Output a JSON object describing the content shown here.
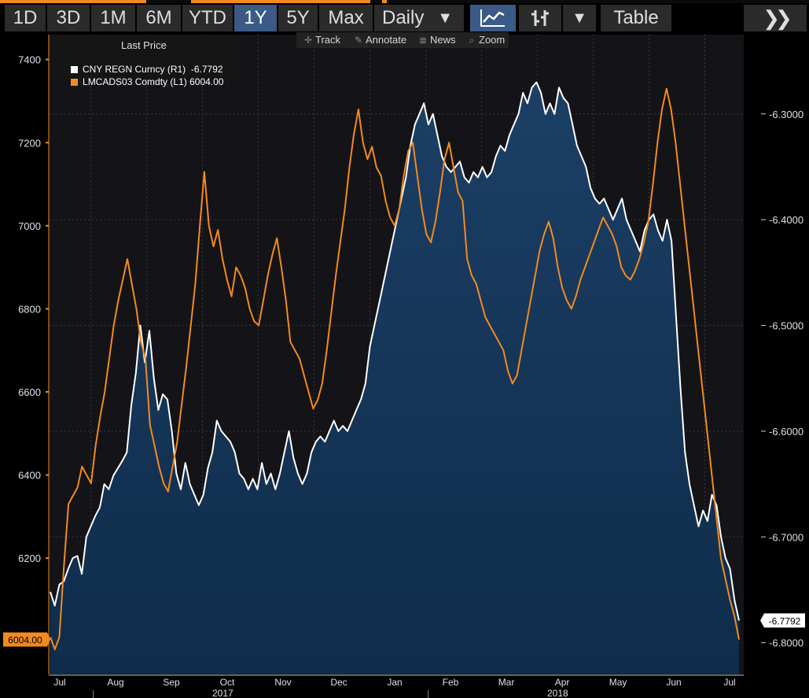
{
  "toolbar": {
    "ranges": [
      "1D",
      "3D",
      "1M",
      "6M",
      "YTD",
      "1Y",
      "5Y",
      "Max"
    ],
    "active_range": "1Y",
    "frequency": "Daily",
    "table_label": "Table"
  },
  "chart_controls": [
    "Track",
    "Annotate",
    "News",
    "Zoom"
  ],
  "legend": {
    "title": "Last Price",
    "entries": [
      {
        "name": "CNY REGN Curncy",
        "axis": "(R1)",
        "value": "-6.7792",
        "color": "#ffffff"
      },
      {
        "name": "LMCADS03 Comdty",
        "axis": "(L1)",
        "value": "6004.00",
        "color": "#f28a1f"
      }
    ]
  },
  "chart_data": {
    "type": "line",
    "left_axis": {
      "min": 5920,
      "max": 7460,
      "ticks": [
        6200,
        6400,
        6600,
        6800,
        7000,
        7200,
        7400
      ]
    },
    "right_axis": {
      "min": -6.83,
      "max": -6.225,
      "ticks": [
        -6.3,
        -6.4,
        -6.5,
        -6.6,
        -6.7,
        -6.8
      ],
      "tick_labels": [
        "-6.3000",
        "-6.4000",
        "-6.5000",
        "-6.6000",
        "-6.7000",
        "-6.8000"
      ]
    },
    "month_labels": [
      "Jul",
      "Aug",
      "Sep",
      "Oct",
      "Nov",
      "Dec",
      "Jan",
      "Feb",
      "Mar",
      "Apr",
      "May",
      "Jun",
      "Jul"
    ],
    "year_labels": [
      {
        "label": "2017",
        "after_month": 3
      },
      {
        "label": "2018",
        "after_month": 9
      }
    ],
    "last_value_labels": {
      "left": "6004.00",
      "right": "-6.7792"
    },
    "series": [
      {
        "name": "CNY REGN Curncy",
        "axis": "right",
        "style": "area",
        "color": "#ffffff",
        "fill": "#0f2c4a",
        "values": [
          -6.752,
          -6.765,
          -6.745,
          -6.742,
          -6.73,
          -6.72,
          -6.718,
          -6.735,
          -6.7,
          -6.69,
          -6.68,
          -6.672,
          -6.65,
          -6.655,
          -6.642,
          -6.635,
          -6.628,
          -6.62,
          -6.575,
          -6.545,
          -6.5,
          -6.535,
          -6.505,
          -6.55,
          -6.58,
          -6.565,
          -6.57,
          -6.6,
          -6.64,
          -6.655,
          -6.63,
          -6.65,
          -6.66,
          -6.67,
          -6.66,
          -6.635,
          -6.62,
          -6.59,
          -6.6,
          -6.605,
          -6.61,
          -6.62,
          -6.64,
          -6.645,
          -6.655,
          -6.645,
          -6.655,
          -6.63,
          -6.65,
          -6.64,
          -6.655,
          -6.64,
          -6.62,
          -6.6,
          -6.625,
          -6.64,
          -6.65,
          -6.64,
          -6.62,
          -6.61,
          -6.605,
          -6.61,
          -6.6,
          -6.59,
          -6.6,
          -6.595,
          -6.6,
          -6.59,
          -6.58,
          -6.57,
          -6.555,
          -6.52,
          -6.5,
          -6.48,
          -6.46,
          -6.44,
          -6.42,
          -6.4,
          -6.38,
          -6.36,
          -6.33,
          -6.31,
          -6.3,
          -6.29,
          -6.31,
          -6.3,
          -6.32,
          -6.34,
          -6.35,
          -6.355,
          -6.35,
          -6.345,
          -6.36,
          -6.365,
          -6.355,
          -6.36,
          -6.35,
          -6.36,
          -6.355,
          -6.34,
          -6.33,
          -6.335,
          -6.32,
          -6.31,
          -6.3,
          -6.28,
          -6.29,
          -6.275,
          -6.27,
          -6.28,
          -6.3,
          -6.29,
          -6.3,
          -6.275,
          -6.285,
          -6.29,
          -6.31,
          -6.33,
          -6.34,
          -6.35,
          -6.37,
          -6.38,
          -6.385,
          -6.38,
          -6.39,
          -6.4,
          -6.39,
          -6.38,
          -6.4,
          -6.41,
          -6.42,
          -6.43,
          -6.41,
          -6.4,
          -6.395,
          -6.41,
          -6.42,
          -6.4,
          -6.42,
          -6.49,
          -6.56,
          -6.62,
          -6.65,
          -6.67,
          -6.69,
          -6.675,
          -6.685,
          -6.66,
          -6.67,
          -6.7,
          -6.72,
          -6.73,
          -6.76,
          -6.779
        ]
      },
      {
        "name": "LMCADS03 Comdty",
        "axis": "left",
        "style": "line",
        "color": "#f28a1f",
        "values": [
          6010,
          5980,
          6010,
          6180,
          6330,
          6350,
          6370,
          6420,
          6400,
          6380,
          6470,
          6540,
          6600,
          6680,
          6760,
          6820,
          6870,
          6920,
          6860,
          6800,
          6720,
          6680,
          6520,
          6470,
          6420,
          6380,
          6360,
          6420,
          6480,
          6570,
          6660,
          6760,
          6860,
          7000,
          7130,
          7000,
          6950,
          6990,
          6920,
          6870,
          6830,
          6900,
          6880,
          6850,
          6800,
          6770,
          6760,
          6820,
          6880,
          6930,
          6970,
          6900,
          6820,
          6720,
          6700,
          6680,
          6640,
          6600,
          6560,
          6580,
          6620,
          6700,
          6790,
          6880,
          6960,
          7040,
          7140,
          7220,
          7280,
          7200,
          7160,
          7190,
          7140,
          7120,
          7060,
          7020,
          7000,
          7040,
          7120,
          7180,
          7200,
          7120,
          7040,
          6980,
          6960,
          7010,
          7080,
          7160,
          7200,
          7140,
          7080,
          7060,
          6920,
          6880,
          6860,
          6820,
          6780,
          6760,
          6740,
          6720,
          6700,
          6650,
          6620,
          6640,
          6700,
          6760,
          6820,
          6880,
          6940,
          6980,
          7010,
          6970,
          6900,
          6850,
          6820,
          6800,
          6830,
          6870,
          6900,
          6930,
          6960,
          6990,
          7020,
          7000,
          6980,
          6950,
          6900,
          6880,
          6870,
          6890,
          6920,
          6960,
          7010,
          7100,
          7200,
          7280,
          7330,
          7280,
          7200,
          7100,
          7000,
          6900,
          6800,
          6700,
          6600,
          6500,
          6400,
          6300,
          6200,
          6150,
          6100,
          6060,
          6004
        ]
      }
    ]
  }
}
